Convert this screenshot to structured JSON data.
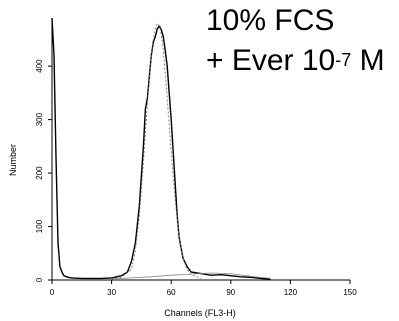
{
  "chart_data": {
    "type": "line",
    "title_line1": "10% FCS",
    "title_line2_prefix": "+ Ever 10",
    "title_line2_exp": "-7",
    "title_line2_suffix": " M",
    "xlabel": "Channels (FL3-H)",
    "ylabel": "Number",
    "xlim": [
      0,
      150
    ],
    "ylim": [
      0,
      490
    ],
    "xticks": [
      0,
      30,
      60,
      90,
      120,
      150
    ],
    "yticks": [
      0,
      100,
      200,
      300,
      400
    ],
    "series": [
      {
        "style": "solid",
        "x": [
          0,
          1,
          2,
          3,
          4,
          5,
          6,
          8,
          10,
          15,
          20,
          25,
          30,
          35,
          38,
          40,
          42,
          44,
          46,
          47,
          48,
          49,
          50,
          51,
          52,
          53,
          54,
          55,
          56,
          57,
          58,
          59,
          60,
          61,
          62,
          63,
          64,
          66,
          68,
          70,
          75,
          80,
          85,
          90,
          95,
          100,
          105,
          110
        ],
        "y": [
          490,
          420,
          230,
          70,
          25,
          15,
          8,
          5,
          4,
          3,
          3,
          3,
          4,
          8,
          15,
          35,
          70,
          140,
          250,
          320,
          340,
          380,
          420,
          445,
          455,
          470,
          475,
          468,
          455,
          430,
          400,
          350,
          300,
          240,
          180,
          120,
          80,
          40,
          25,
          15,
          12,
          9,
          10,
          8,
          6,
          5,
          3,
          2
        ]
      },
      {
        "style": "dashed",
        "x": [
          30,
          35,
          40,
          42,
          44,
          46,
          48,
          50,
          51,
          52,
          53,
          54,
          55,
          56,
          57,
          58,
          60,
          62,
          64,
          66,
          68,
          70,
          75
        ],
        "y": [
          2,
          5,
          20,
          55,
          120,
          220,
          330,
          420,
          450,
          470,
          480,
          475,
          460,
          430,
          390,
          340,
          240,
          150,
          80,
          40,
          20,
          10,
          3
        ]
      },
      {
        "style": "thin",
        "x": [
          30,
          40,
          50,
          60,
          70,
          80,
          90,
          100,
          110
        ],
        "y": [
          2,
          4,
          6,
          9,
          11,
          13,
          12,
          7,
          3
        ]
      }
    ]
  }
}
